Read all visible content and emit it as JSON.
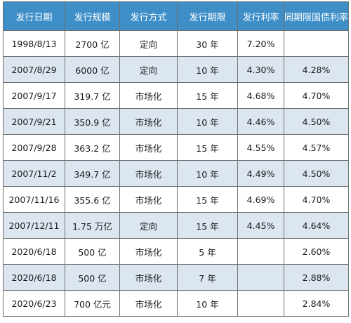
{
  "table": {
    "headers": [
      "发行日期",
      "发行规模",
      "发行方式",
      "发行期限",
      "发行利率",
      "同期限国债利率"
    ],
    "rows": [
      [
        "1998/8/13",
        "2700 亿",
        "定向",
        "30 年",
        "7.20%",
        ""
      ],
      [
        "2007/8/29",
        "6000 亿",
        "定向",
        "10 年",
        "4.30%",
        "4.28%"
      ],
      [
        "2007/9/17",
        "319.7 亿",
        "市场化",
        "15 年",
        "4.68%",
        "4.70%"
      ],
      [
        "2007/9/21",
        "350.9 亿",
        "市场化",
        "10 年",
        "4.46%",
        "4.50%"
      ],
      [
        "2007/9/28",
        "363.2 亿",
        "市场化",
        "15 年",
        "4.55%",
        "4.57%"
      ],
      [
        "2007/11/2",
        "349.7 亿",
        "市场化",
        "10 年",
        "4.49%",
        "4.50%"
      ],
      [
        "2007/11/16",
        "355.6 亿",
        "市场化",
        "15 年",
        "4.69%",
        "4.70%"
      ],
      [
        "2007/12/11",
        "1.75 万亿",
        "定向",
        "15 年",
        "4.45%",
        "4.64%"
      ],
      [
        "2020/6/18",
        "500 亿",
        "市场化",
        "5 年",
        "",
        "2.60%"
      ],
      [
        "2020/6/18",
        "500 亿",
        "市场化",
        "7 年",
        "",
        "2.88%"
      ],
      [
        "2020/6/23",
        "700 亿元",
        "市场化",
        "10 年",
        "",
        "2.84%"
      ]
    ]
  }
}
